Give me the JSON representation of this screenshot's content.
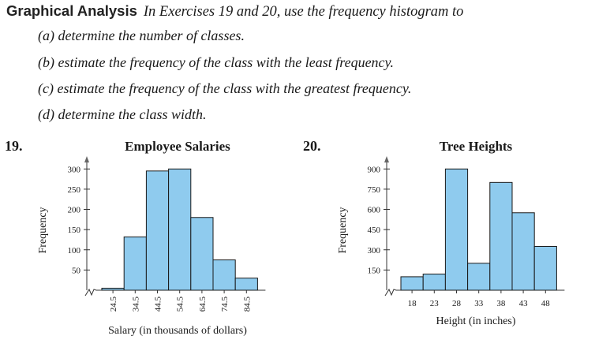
{
  "header": {
    "title": "Graphical Analysis",
    "instruction": "In Exercises 19 and 20, use the frequency histogram to"
  },
  "items": [
    "(a)  determine the number of classes.",
    "(b)  estimate the frequency of the class with the least frequency.",
    "(c)  estimate the frequency of the class with the greatest frequency.",
    "(d)  determine the class width."
  ],
  "exercises": [
    "19.",
    "20."
  ],
  "colors": {
    "bar_fill": "#8fcbee",
    "bar_stroke": "#1a1a1a"
  },
  "chart_data": [
    {
      "type": "bar",
      "title": "Employee Salaries",
      "xlabel": "Salary (in thousands of dollars)",
      "ylabel": "Frequency",
      "categories": [
        "24.5",
        "34.5",
        "44.5",
        "54.5",
        "64.5",
        "74.5",
        "84.5"
      ],
      "values": [
        5,
        132,
        295,
        300,
        180,
        75,
        30
      ],
      "yticks": [
        50,
        100,
        150,
        200,
        250,
        300
      ],
      "ylim": [
        0,
        320
      ],
      "axis_break": true,
      "rotated_xticks": true
    },
    {
      "type": "bar",
      "title": "Tree Heights",
      "xlabel": "Height (in inches)",
      "ylabel": "Frequency",
      "categories": [
        "18",
        "23",
        "28",
        "33",
        "38",
        "43",
        "48"
      ],
      "values": [
        100,
        120,
        900,
        200,
        800,
        575,
        325
      ],
      "yticks": [
        150,
        300,
        450,
        600,
        750,
        900
      ],
      "ylim": [
        0,
        960
      ],
      "axis_break": true,
      "rotated_xticks": false
    }
  ]
}
